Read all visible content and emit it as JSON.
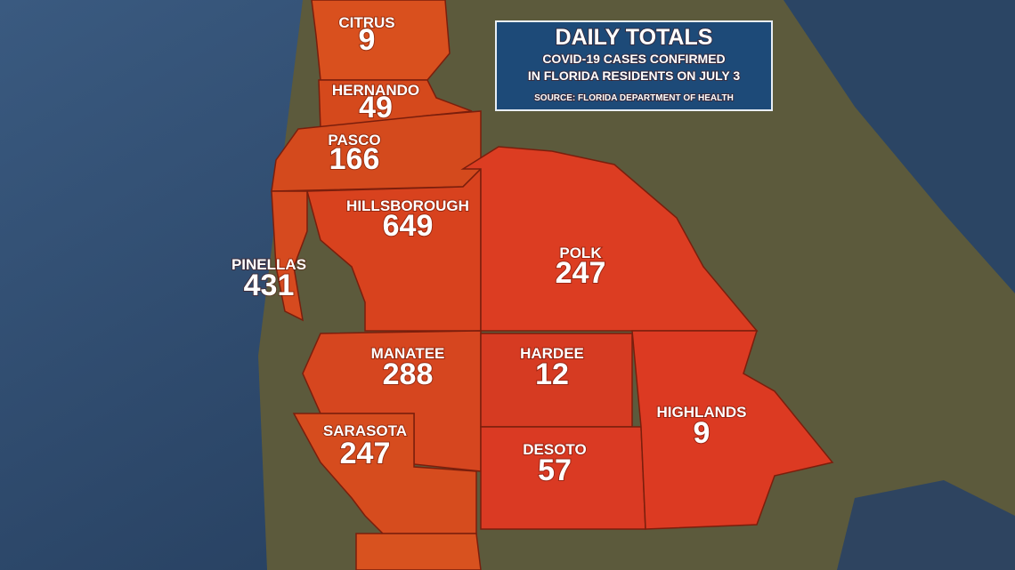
{
  "header": {
    "title": "DAILY TOTALS",
    "subtitle_line1": "COVID-19 CASES CONFIRMED",
    "subtitle_line2": "IN FLORIDA RESIDENTS ON JULY 3",
    "source": "SOURCE: FLORIDA DEPARTMENT OF HEALTH"
  },
  "counties": [
    {
      "name": "CITRUS",
      "cases": 9
    },
    {
      "name": "HERNANDO",
      "cases": 49
    },
    {
      "name": "PASCO",
      "cases": 166
    },
    {
      "name": "HILLSBOROUGH",
      "cases": 649
    },
    {
      "name": "PINELLAS",
      "cases": 431
    },
    {
      "name": "POLK",
      "cases": 247
    },
    {
      "name": "MANATEE",
      "cases": 288
    },
    {
      "name": "HARDEE",
      "cases": 12
    },
    {
      "name": "HIGHLANDS",
      "cases": 9
    },
    {
      "name": "SARASOTA",
      "cases": 247
    },
    {
      "name": "DESOTO",
      "cases": 57
    }
  ]
}
